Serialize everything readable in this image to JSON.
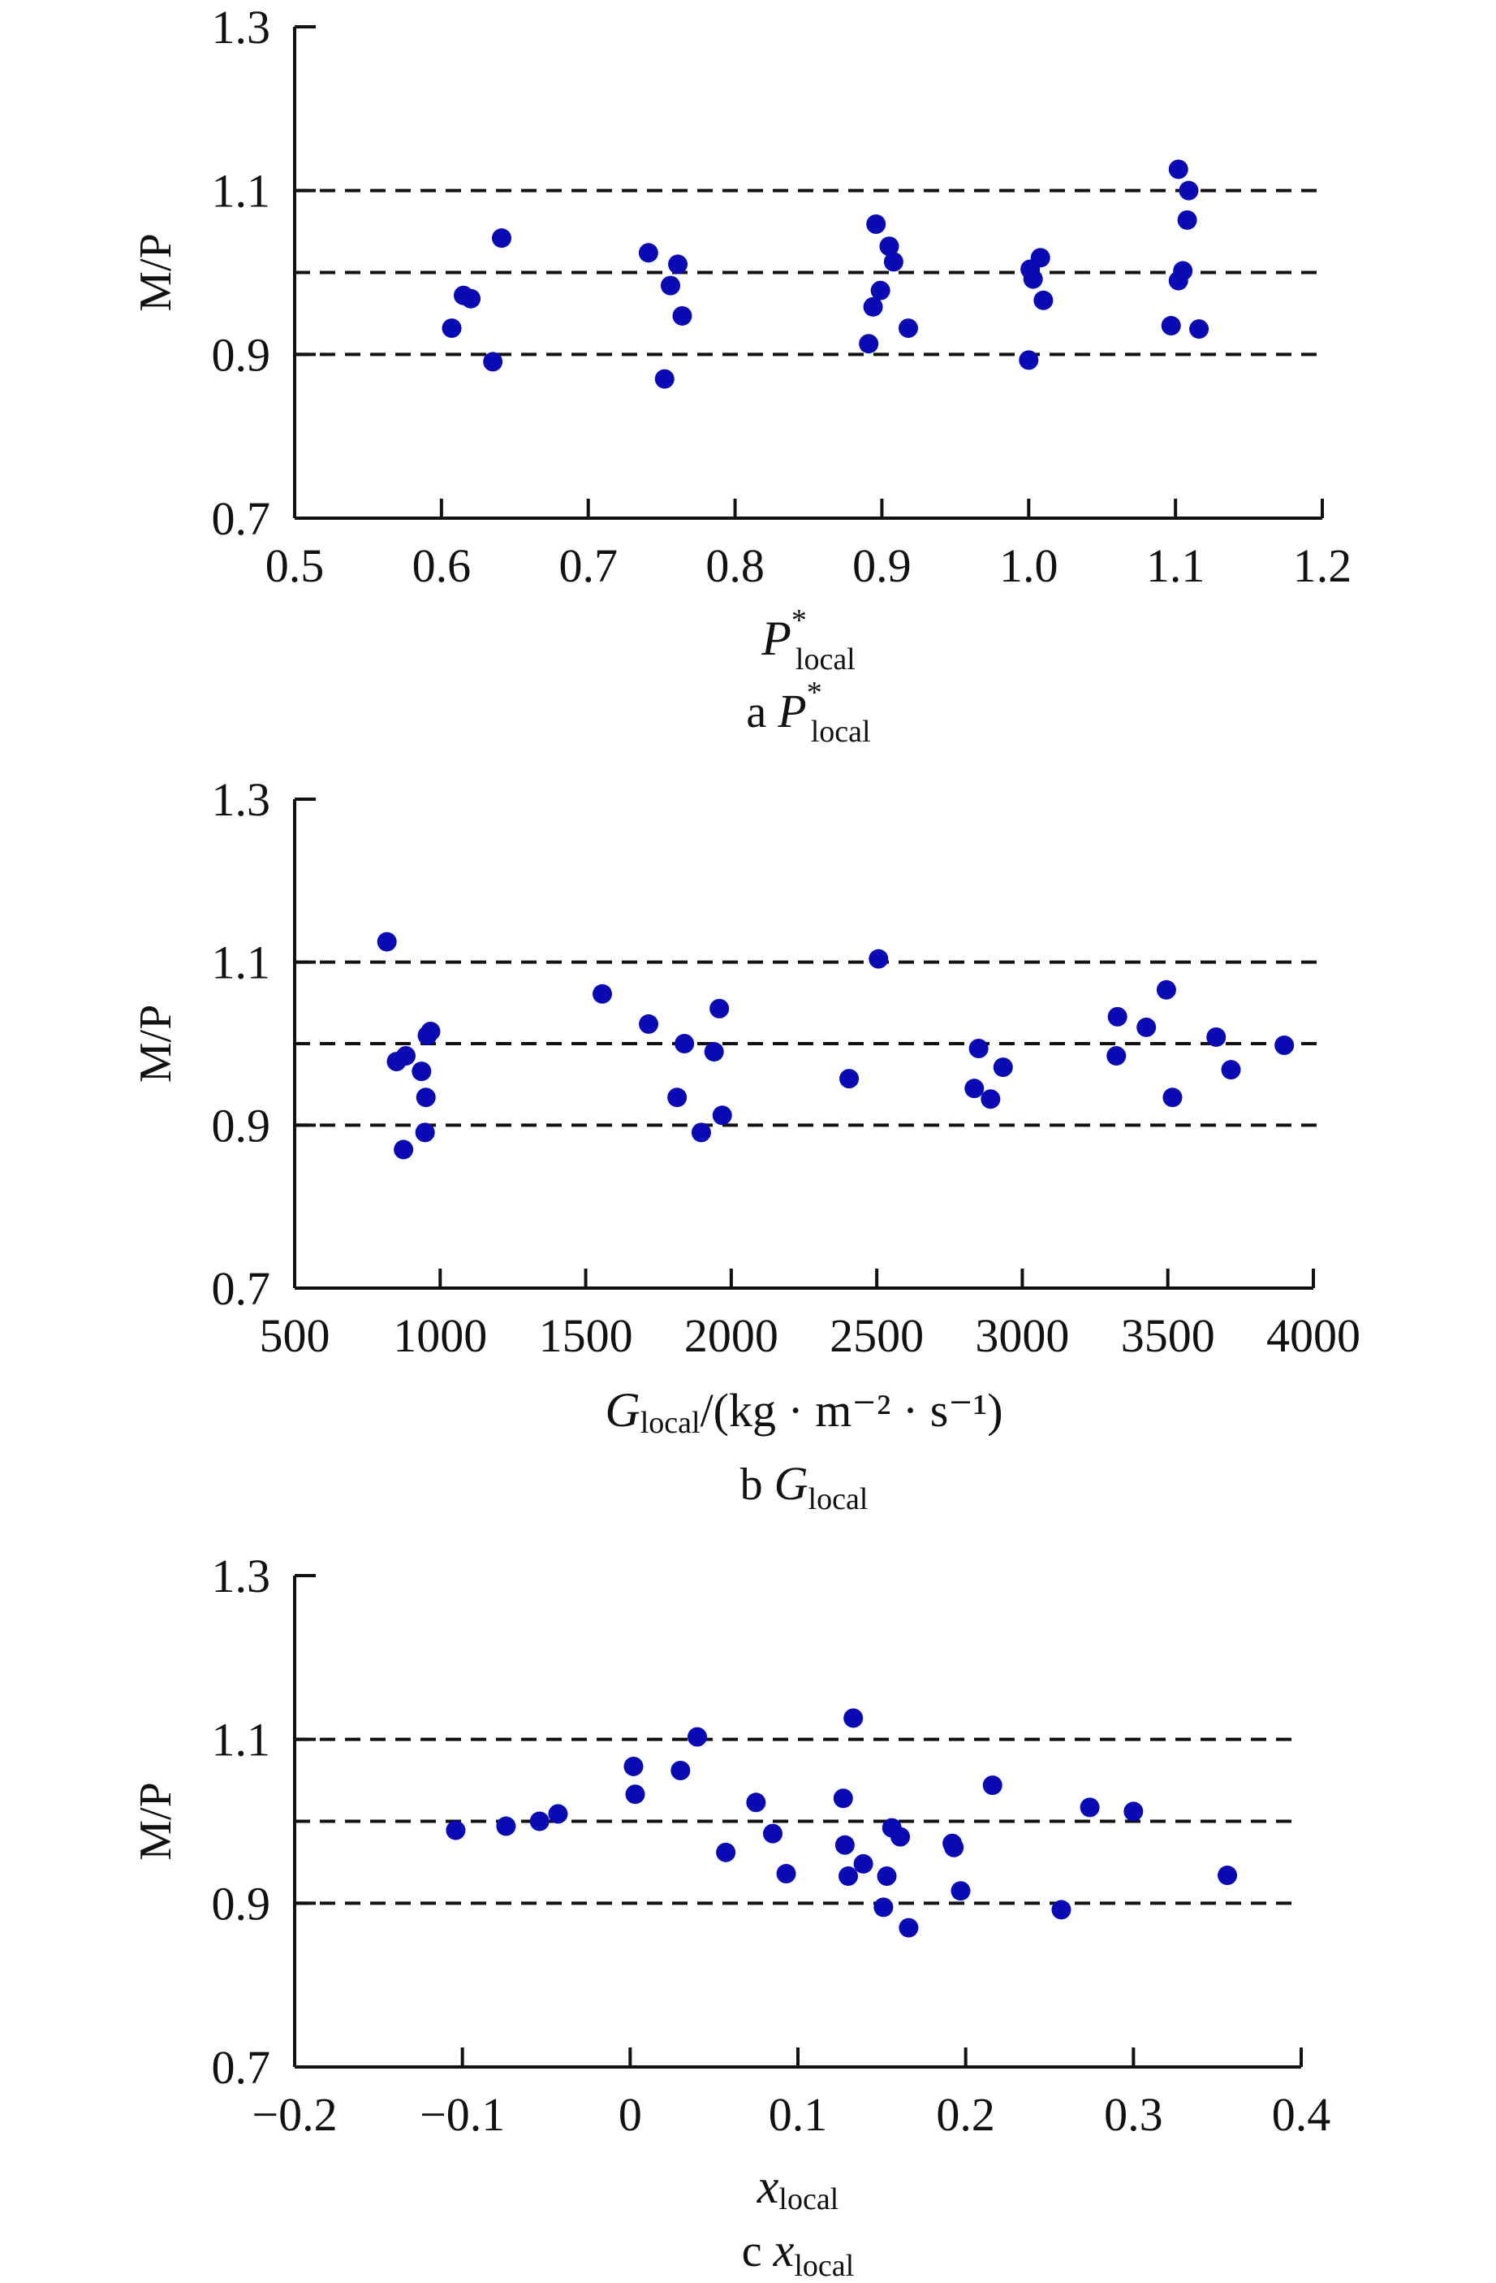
{
  "chart_data": [
    {
      "type": "scatter",
      "panel": "a",
      "caption_prefix": "a",
      "caption_var": "P",
      "caption_sup": "*",
      "caption_sub": "local",
      "xlabel_var": "P",
      "xlabel_sup": "*",
      "xlabel_sub": "local",
      "xlabel_suffix": "",
      "ylabel": "M/P",
      "xlim": [
        0.5,
        1.2
      ],
      "ylim": [
        0.7,
        1.3
      ],
      "xticks": [
        0.5,
        0.6,
        0.7,
        0.8,
        0.9,
        1.0,
        1.1,
        1.2
      ],
      "xtick_labels": [
        "0.5",
        "0.6",
        "0.7",
        "0.8",
        "0.9",
        "1.0",
        "1.1",
        "1.2"
      ],
      "yticks": [
        0.7,
        0.9,
        1.1,
        1.3
      ],
      "ytick_labels": [
        "0.7",
        "0.9",
        "1.1",
        "1.3"
      ],
      "ref_lines": [
        0.9,
        1.0,
        1.1
      ],
      "marker_color": "#0a0ab4",
      "points": [
        [
          0.607,
          0.932
        ],
        [
          0.615,
          0.972
        ],
        [
          0.62,
          0.968
        ],
        [
          0.635,
          0.891
        ],
        [
          0.641,
          1.042
        ],
        [
          0.741,
          1.024
        ],
        [
          0.752,
          0.87
        ],
        [
          0.756,
          0.984
        ],
        [
          0.761,
          1.01
        ],
        [
          0.764,
          0.947
        ],
        [
          0.891,
          0.913
        ],
        [
          0.894,
          0.958
        ],
        [
          0.896,
          1.059
        ],
        [
          0.899,
          0.978
        ],
        [
          0.905,
          1.032
        ],
        [
          0.908,
          1.013
        ],
        [
          0.918,
          0.932
        ],
        [
          1.0,
          0.893
        ],
        [
          1.001,
          1.004
        ],
        [
          1.003,
          0.992
        ],
        [
          1.008,
          1.018
        ],
        [
          1.01,
          0.966
        ],
        [
          1.097,
          0.935
        ],
        [
          1.102,
          1.126
        ],
        [
          1.102,
          0.99
        ],
        [
          1.105,
          1.002
        ],
        [
          1.108,
          1.064
        ],
        [
          1.109,
          1.1
        ],
        [
          1.116,
          0.931
        ]
      ]
    },
    {
      "type": "scatter",
      "panel": "b",
      "caption_prefix": "b",
      "caption_var": "G",
      "caption_sup": "",
      "caption_sub": "local",
      "xlabel_var": "G",
      "xlabel_sup": "",
      "xlabel_sub": "local",
      "xlabel_suffix": "/(kg · m⁻² · s⁻¹)",
      "ylabel": "M/P",
      "xlim": [
        500,
        4000
      ],
      "ylim": [
        0.7,
        1.3
      ],
      "xticks": [
        500,
        1000,
        1500,
        2000,
        2500,
        3000,
        3500,
        4000
      ],
      "xtick_labels": [
        "500",
        "1000",
        "1500",
        "2000",
        "2500",
        "3000",
        "3500",
        "4000"
      ],
      "yticks": [
        0.7,
        0.9,
        1.1,
        1.3
      ],
      "ytick_labels": [
        "0.7",
        "0.9",
        "1.1",
        "1.3"
      ],
      "ref_lines": [
        0.9,
        1.0,
        1.1
      ],
      "marker_color": "#0a0ab4",
      "points": [
        [
          817,
          1.125
        ],
        [
          850,
          0.978
        ],
        [
          874,
          0.87
        ],
        [
          882,
          0.985
        ],
        [
          936,
          0.966
        ],
        [
          948,
          0.891
        ],
        [
          951,
          0.934
        ],
        [
          956,
          1.01
        ],
        [
          967,
          1.015
        ],
        [
          1557,
          1.061
        ],
        [
          1716,
          1.024
        ],
        [
          1814,
          0.934
        ],
        [
          1839,
          1.0
        ],
        [
          1897,
          0.891
        ],
        [
          1941,
          0.99
        ],
        [
          1959,
          1.043
        ],
        [
          1969,
          0.912
        ],
        [
          2405,
          0.957
        ],
        [
          2506,
          1.104
        ],
        [
          2835,
          0.945
        ],
        [
          2850,
          0.994
        ],
        [
          2891,
          0.932
        ],
        [
          2934,
          0.971
        ],
        [
          3323,
          0.985
        ],
        [
          3327,
          1.033
        ],
        [
          3426,
          1.02
        ],
        [
          3495,
          1.066
        ],
        [
          3516,
          0.934
        ],
        [
          3666,
          1.008
        ],
        [
          3717,
          0.968
        ],
        [
          3900,
          0.998
        ]
      ]
    },
    {
      "type": "scatter",
      "panel": "c",
      "caption_prefix": "c",
      "caption_var": "x",
      "caption_sup": "",
      "caption_sub": "local",
      "xlabel_var": "x",
      "xlabel_sup": "",
      "xlabel_sub": "local",
      "xlabel_suffix": "",
      "ylabel": "M/P",
      "xlim": [
        -0.2,
        0.4
      ],
      "ylim": [
        0.7,
        1.3
      ],
      "xticks": [
        -0.2,
        -0.1,
        0,
        0.1,
        0.2,
        0.3,
        0.4
      ],
      "xtick_labels": [
        "−0.2",
        "−0.1",
        "0",
        "0.1",
        "0.2",
        "0.3",
        "0.4"
      ],
      "yticks": [
        0.7,
        0.9,
        1.1,
        1.3
      ],
      "ytick_labels": [
        "0.7",
        "0.9",
        "1.1",
        "1.3"
      ],
      "ref_lines": [
        0.9,
        1.0,
        1.1
      ],
      "marker_color": "#0a0ab4",
      "points": [
        [
          -0.104,
          0.989
        ],
        [
          -0.074,
          0.994
        ],
        [
          -0.054,
          1.0
        ],
        [
          -0.043,
          1.009
        ],
        [
          0.002,
          1.067
        ],
        [
          0.003,
          1.033
        ],
        [
          0.03,
          1.062
        ],
        [
          0.04,
          1.103
        ],
        [
          0.057,
          0.962
        ],
        [
          0.075,
          1.023
        ],
        [
          0.085,
          0.985
        ],
        [
          0.093,
          0.936
        ],
        [
          0.127,
          1.028
        ],
        [
          0.128,
          0.971
        ],
        [
          0.13,
          0.933
        ],
        [
          0.133,
          1.126
        ],
        [
          0.139,
          0.948
        ],
        [
          0.151,
          0.895
        ],
        [
          0.153,
          0.933
        ],
        [
          0.156,
          0.992
        ],
        [
          0.161,
          0.981
        ],
        [
          0.166,
          0.87
        ],
        [
          0.192,
          0.973
        ],
        [
          0.193,
          0.968
        ],
        [
          0.197,
          0.915
        ],
        [
          0.216,
          1.044
        ],
        [
          0.257,
          0.892
        ],
        [
          0.274,
          1.017
        ],
        [
          0.3,
          1.012
        ],
        [
          0.356,
          0.934
        ]
      ]
    }
  ]
}
